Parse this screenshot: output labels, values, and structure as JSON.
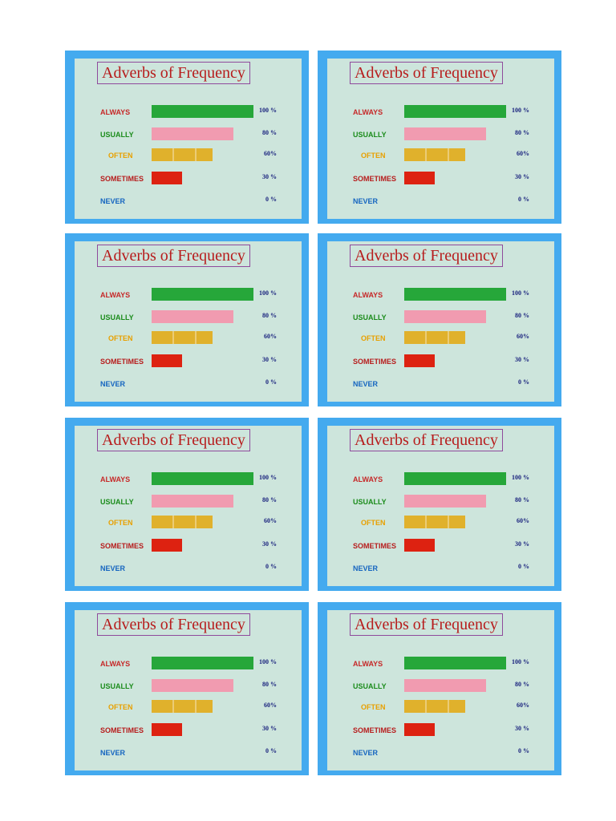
{
  "card_title": "Adverbs of Frequency",
  "frame_color": "#44aaef",
  "panel_color": "#cde5dc",
  "chart_data": {
    "type": "bar",
    "title": "Adverbs of Frequency",
    "orientation": "horizontal",
    "categories": [
      "ALWAYS",
      "USUALLY",
      "OFTEN",
      "SOMETIMES",
      "NEVER"
    ],
    "values": [
      100,
      80,
      60,
      30,
      0
    ],
    "value_labels": [
      "100 %",
      "80 %",
      "60%",
      "30 %",
      "0 %"
    ],
    "label_colors": [
      "#c62828",
      "#1b8c1b",
      "#e8a000",
      "#b71c1c",
      "#1565c0"
    ],
    "bar_colors": [
      "#26a73a",
      "#f19bb0",
      "#e0b12c",
      "#dd2211",
      "#1565c0"
    ],
    "xlim": [
      0,
      100
    ],
    "grid": false
  }
}
